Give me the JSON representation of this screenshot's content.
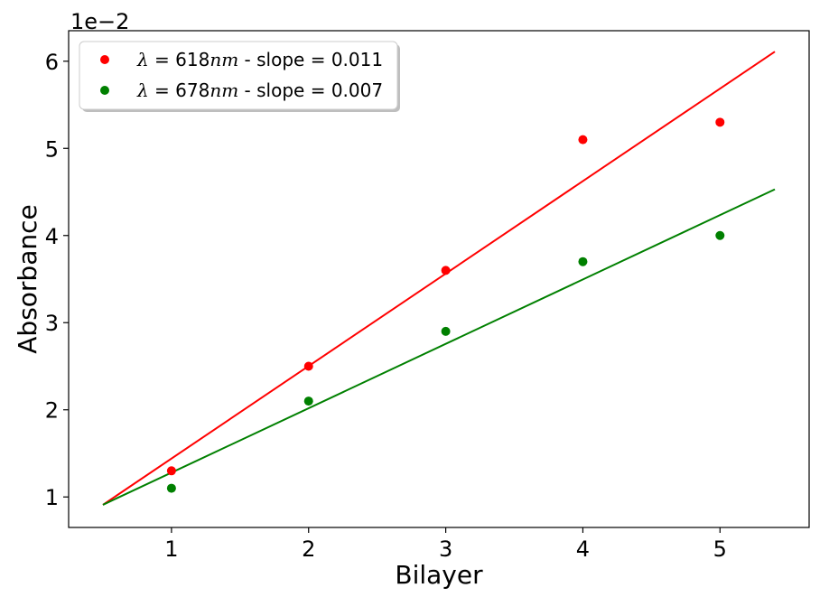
{
  "chart_data": {
    "type": "scatter",
    "xlabel": "Bilayer",
    "ylabel": "Absorbance",
    "offset_text": "1e−2",
    "xlim": [
      0.25,
      5.65
    ],
    "ylim": [
      0.65,
      6.35
    ],
    "x_ticks": [
      1,
      2,
      3,
      4,
      5
    ],
    "y_ticks": [
      1,
      2,
      3,
      4,
      5,
      6
    ],
    "grid": false,
    "legend_placement": "top-left",
    "series": [
      {
        "name": "λ = 618nm - slope = 0.011",
        "legend_parts": {
          "lambda": "λ",
          "eq": " = 618",
          "unit": "nm",
          "rest": " - slope = 0.011"
        },
        "color": "#ff0000",
        "x": [
          1,
          2,
          3,
          4,
          5
        ],
        "y": [
          1.3,
          2.5,
          3.6,
          5.1,
          5.3
        ],
        "fit_line": {
          "x": [
            0.5,
            5.4
          ],
          "y": [
            0.91,
            6.11
          ]
        }
      },
      {
        "name": "λ = 678nm - slope = 0.007",
        "legend_parts": {
          "lambda": "λ",
          "eq": " = 678",
          "unit": "nm",
          "rest": " - slope = 0.007"
        },
        "color": "#008000",
        "x": [
          1,
          2,
          3,
          4,
          5
        ],
        "y": [
          1.1,
          2.1,
          2.9,
          3.7,
          4.0
        ],
        "fit_line": {
          "x": [
            0.5,
            5.4
          ],
          "y": [
            0.91,
            4.53
          ]
        }
      }
    ]
  }
}
